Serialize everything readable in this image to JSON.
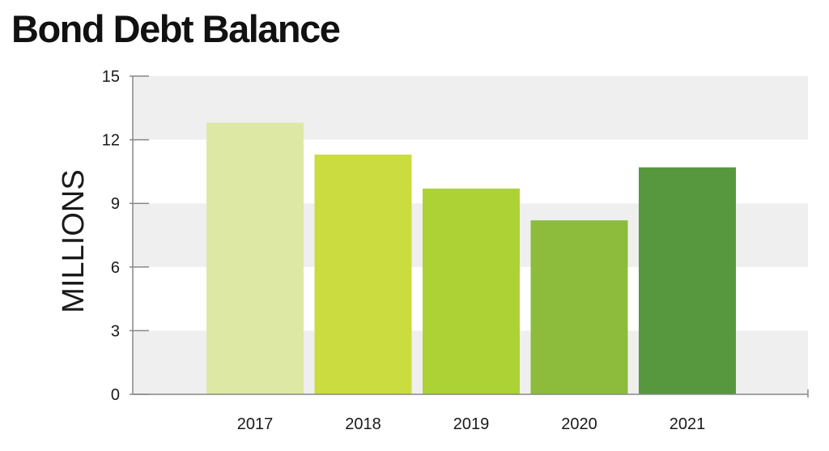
{
  "chart_data": {
    "type": "bar",
    "title": "Bond Debt Balance",
    "ylabel": "MILLIONS",
    "xlabel": "",
    "categories": [
      "2017",
      "2018",
      "2019",
      "2020",
      "2021"
    ],
    "values": [
      12.8,
      11.3,
      9.7,
      8.2,
      10.7
    ],
    "colors": [
      "#dde8a4",
      "#cadc3f",
      "#add236",
      "#8dbc3c",
      "#57973e"
    ],
    "ylim": [
      0,
      15
    ],
    "yticks": [
      0,
      3,
      6,
      9,
      12,
      15
    ],
    "grid": "alternating horizontal bands",
    "band_color": "#efefef",
    "axis_color": "#888888",
    "legend": "none"
  }
}
